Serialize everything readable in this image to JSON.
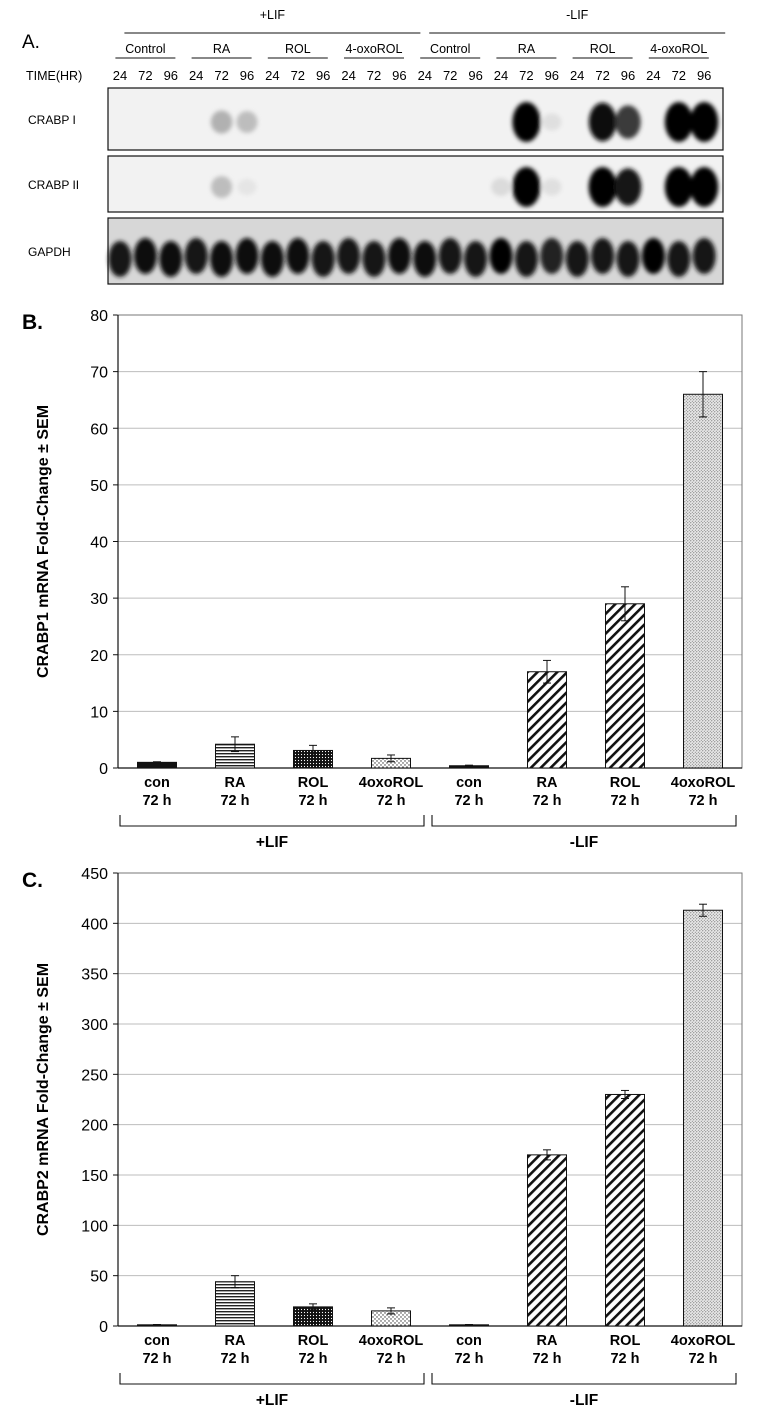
{
  "figure": {
    "panel_a": {
      "letter": "A.",
      "time_label": "TIME(HR)",
      "conditions": [
        "+LIF",
        "-LIF"
      ],
      "treatments": [
        "Control",
        "RA",
        "ROL",
        "4-oxoROL",
        "Control",
        "RA",
        "ROL",
        "4-oxoROL"
      ],
      "times": [
        "24",
        "72",
        "96"
      ],
      "rows": [
        {
          "label": "CRABP I",
          "intensity": [
            0,
            0,
            0,
            0,
            0.35,
            0.3,
            0,
            0,
            0,
            0,
            0,
            0,
            0,
            0,
            0,
            0,
            1.0,
            0.12,
            0,
            0.95,
            0.75,
            0,
            1.0,
            1.0
          ]
        },
        {
          "label": "CRABP II",
          "intensity": [
            0,
            0,
            0,
            0,
            0.3,
            0.08,
            0,
            0,
            0,
            0,
            0,
            0,
            0,
            0,
            0,
            0.15,
            1.0,
            0.12,
            0,
            1.0,
            0.9,
            0,
            1.0,
            1.0
          ]
        },
        {
          "label": "GAPDH",
          "intensity": [
            0.9,
            0.95,
            0.95,
            0.9,
            0.95,
            0.95,
            0.95,
            0.95,
            0.9,
            0.9,
            0.9,
            0.95,
            0.95,
            0.9,
            0.9,
            1.0,
            0.9,
            0.85,
            0.9,
            0.9,
            0.9,
            1.0,
            0.9,
            0.9
          ]
        }
      ]
    }
  },
  "chart_data": [
    {
      "type": "bar",
      "letter": "B.",
      "ylabel": "CRABP1 mRNA Fold-Change ± SEM",
      "ylim": [
        0,
        80
      ],
      "yticks": [
        0,
        10,
        20,
        30,
        40,
        50,
        60,
        70,
        80
      ],
      "grid": true,
      "categories": [
        "con\n72 h",
        "RA\n72 h",
        "ROL\n72 h",
        "4oxoROL\n72 h",
        "con\n72 h",
        "RA\n72 h",
        "ROL\n72 h",
        "4oxoROL\n72 h"
      ],
      "category_lines": [
        [
          "con",
          "72 h"
        ],
        [
          "RA",
          "72 h"
        ],
        [
          "ROL",
          "72 h"
        ],
        [
          "4oxoROL",
          "72 h"
        ],
        [
          "con",
          "72 h"
        ],
        [
          "RA",
          "72 h"
        ],
        [
          "ROL",
          "72 h"
        ],
        [
          "4oxoROL",
          "72 h"
        ]
      ],
      "values": [
        1,
        4.2,
        3.1,
        1.7,
        0.4,
        17,
        29,
        66
      ],
      "errors": [
        0.1,
        1.3,
        0.9,
        0.6,
        0.1,
        2,
        3,
        4
      ],
      "patterns": [
        "solid",
        "hlines",
        "dots-dark",
        "dots-light",
        "solid",
        "diag",
        "diag",
        "stipple"
      ],
      "groups": [
        {
          "label": "+LIF",
          "span": [
            0,
            3
          ]
        },
        {
          "label": "-LIF",
          "span": [
            4,
            7
          ]
        }
      ]
    },
    {
      "type": "bar",
      "letter": "C.",
      "ylabel": "CRABP2 mRNA Fold-Change ± SEM",
      "ylim": [
        0,
        450
      ],
      "yticks": [
        0,
        50,
        100,
        150,
        200,
        250,
        300,
        350,
        400,
        450
      ],
      "grid": true,
      "category_lines": [
        [
          "con",
          "72 h"
        ],
        [
          "RA",
          "72 h"
        ],
        [
          "ROL",
          "72 h"
        ],
        [
          "4oxoROL",
          "72 h"
        ],
        [
          "con",
          "72 h"
        ],
        [
          "RA",
          "72 h"
        ],
        [
          "ROL",
          "72 h"
        ],
        [
          "4oxoROL",
          "72 h"
        ]
      ],
      "values": [
        1,
        44,
        19,
        15,
        1,
        170,
        230,
        413
      ],
      "errors": [
        0.5,
        6,
        3,
        3,
        0.5,
        5,
        4,
        6
      ],
      "patterns": [
        "solid",
        "hlines",
        "dots-dark",
        "dots-light",
        "solid",
        "diag",
        "diag",
        "stipple"
      ],
      "groups": [
        {
          "label": "+LIF",
          "span": [
            0,
            3
          ]
        },
        {
          "label": "-LIF",
          "span": [
            4,
            7
          ]
        }
      ]
    }
  ]
}
